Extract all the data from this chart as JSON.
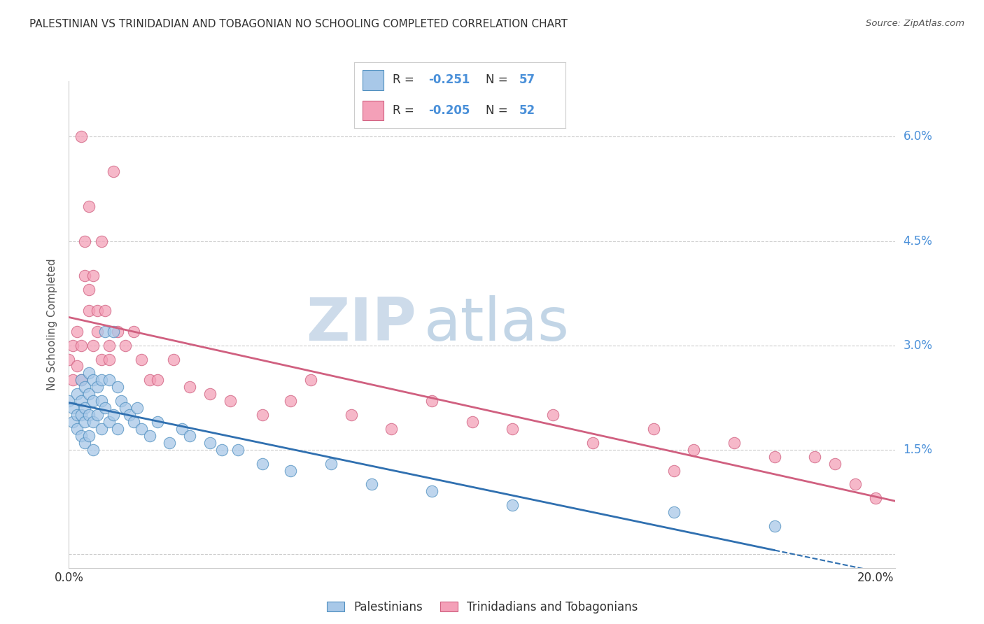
{
  "title": "PALESTINIAN VS TRINIDADIAN AND TOBAGONIAN NO SCHOOLING COMPLETED CORRELATION CHART",
  "source": "Source: ZipAtlas.com",
  "ylabel": "No Schooling Completed",
  "xlim": [
    0.0,
    0.205
  ],
  "ylim": [
    -0.002,
    0.068
  ],
  "xticks": [
    0.0,
    0.2
  ],
  "xtick_labels": [
    "0.0%",
    "20.0%"
  ],
  "yticks": [
    0.015,
    0.03,
    0.045,
    0.06
  ],
  "ytick_labels": [
    "1.5%",
    "3.0%",
    "4.5%",
    "6.0%"
  ],
  "ytick_grid": [
    0.0,
    0.015,
    0.03,
    0.045,
    0.06
  ],
  "blue_color": "#A8C8E8",
  "pink_color": "#F4A0B8",
  "blue_edge_color": "#5090C0",
  "pink_edge_color": "#D06080",
  "blue_line_color": "#3070B0",
  "pink_line_color": "#D06080",
  "grid_color": "#CCCCCC",
  "background_color": "#FFFFFF",
  "watermark_zip": "ZIP",
  "watermark_atlas": "atlas",
  "blue_R": -0.251,
  "blue_N": 57,
  "pink_R": -0.205,
  "pink_N": 52,
  "blue_scatter_x": [
    0.0,
    0.001,
    0.001,
    0.002,
    0.002,
    0.002,
    0.003,
    0.003,
    0.003,
    0.003,
    0.004,
    0.004,
    0.004,
    0.004,
    0.005,
    0.005,
    0.005,
    0.005,
    0.006,
    0.006,
    0.006,
    0.006,
    0.007,
    0.007,
    0.008,
    0.008,
    0.008,
    0.009,
    0.009,
    0.01,
    0.01,
    0.011,
    0.011,
    0.012,
    0.012,
    0.013,
    0.014,
    0.015,
    0.016,
    0.017,
    0.018,
    0.02,
    0.022,
    0.025,
    0.028,
    0.03,
    0.035,
    0.038,
    0.042,
    0.048,
    0.055,
    0.065,
    0.075,
    0.09,
    0.11,
    0.15,
    0.175
  ],
  "blue_scatter_y": [
    0.022,
    0.021,
    0.019,
    0.023,
    0.02,
    0.018,
    0.025,
    0.022,
    0.02,
    0.017,
    0.024,
    0.021,
    0.019,
    0.016,
    0.026,
    0.023,
    0.02,
    0.017,
    0.025,
    0.022,
    0.019,
    0.015,
    0.024,
    0.02,
    0.025,
    0.022,
    0.018,
    0.032,
    0.021,
    0.025,
    0.019,
    0.032,
    0.02,
    0.024,
    0.018,
    0.022,
    0.021,
    0.02,
    0.019,
    0.021,
    0.018,
    0.017,
    0.019,
    0.016,
    0.018,
    0.017,
    0.016,
    0.015,
    0.015,
    0.013,
    0.012,
    0.013,
    0.01,
    0.009,
    0.007,
    0.006,
    0.004
  ],
  "pink_scatter_x": [
    0.0,
    0.001,
    0.001,
    0.002,
    0.002,
    0.003,
    0.003,
    0.003,
    0.004,
    0.004,
    0.005,
    0.005,
    0.005,
    0.006,
    0.006,
    0.007,
    0.007,
    0.008,
    0.008,
    0.009,
    0.01,
    0.01,
    0.011,
    0.012,
    0.014,
    0.016,
    0.018,
    0.02,
    0.022,
    0.026,
    0.03,
    0.035,
    0.04,
    0.048,
    0.055,
    0.06,
    0.07,
    0.08,
    0.09,
    0.1,
    0.11,
    0.12,
    0.13,
    0.145,
    0.155,
    0.165,
    0.175,
    0.185,
    0.19,
    0.195,
    0.15,
    0.2
  ],
  "pink_scatter_y": [
    0.028,
    0.03,
    0.025,
    0.032,
    0.027,
    0.03,
    0.06,
    0.025,
    0.045,
    0.04,
    0.038,
    0.05,
    0.035,
    0.04,
    0.03,
    0.035,
    0.032,
    0.045,
    0.028,
    0.035,
    0.03,
    0.028,
    0.055,
    0.032,
    0.03,
    0.032,
    0.028,
    0.025,
    0.025,
    0.028,
    0.024,
    0.023,
    0.022,
    0.02,
    0.022,
    0.025,
    0.02,
    0.018,
    0.022,
    0.019,
    0.018,
    0.02,
    0.016,
    0.018,
    0.015,
    0.016,
    0.014,
    0.014,
    0.013,
    0.01,
    0.012,
    0.008
  ],
  "legend_label_blue": "Palestinians",
  "legend_label_pink": "Trinidadians and Tobagonians",
  "blue_line_x0": 0.0,
  "blue_line_x1": 0.175,
  "pink_line_x0": 0.0,
  "pink_line_x1": 0.205
}
